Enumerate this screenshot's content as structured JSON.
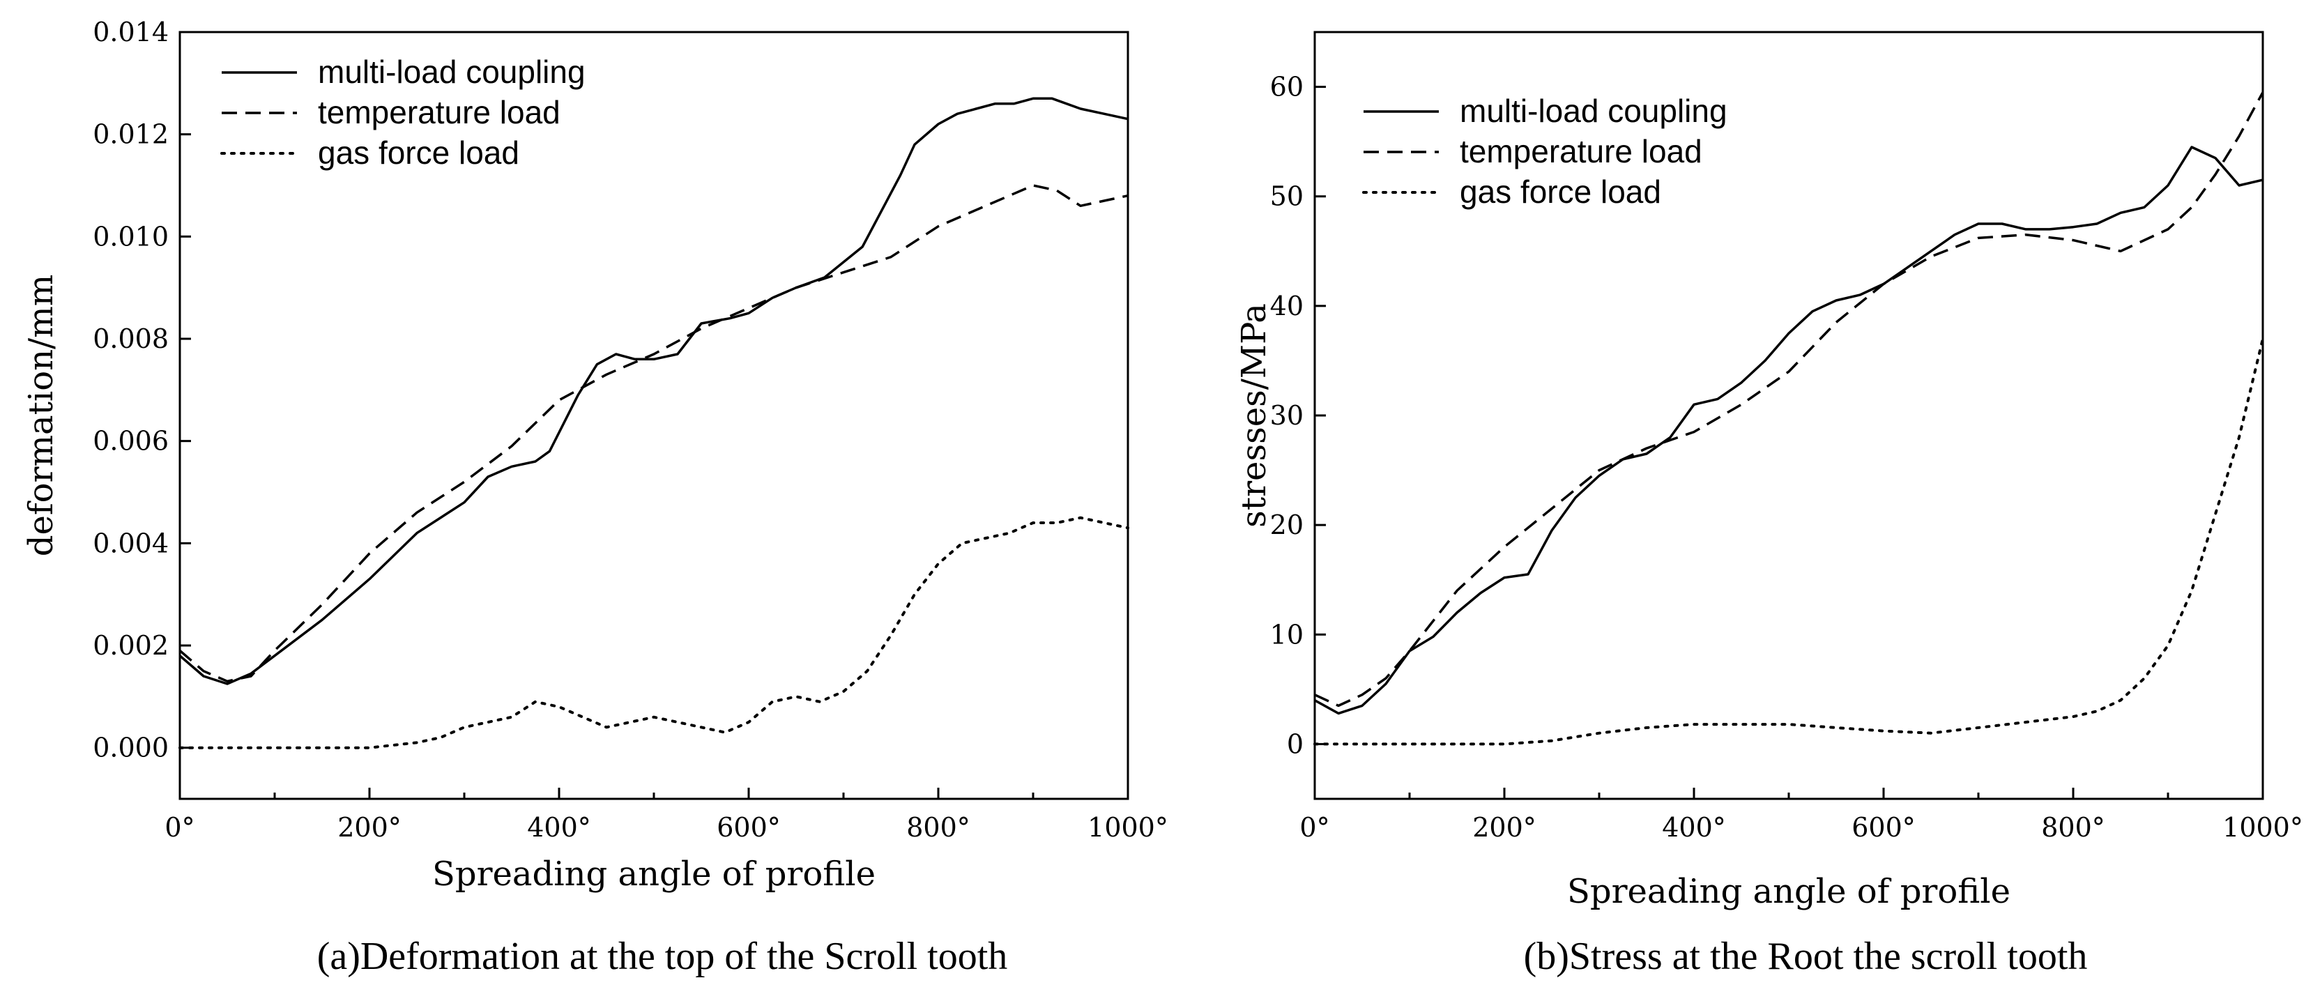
{
  "chart_data": [
    {
      "type": "line",
      "caption": "(a)Deformation at the top of the Scroll tooth",
      "xlabel": "Spreading angle of profile",
      "ylabel": "deformation/mm",
      "xlim": [
        0,
        1000
      ],
      "ylim": [
        -0.001,
        0.014
      ],
      "xticks": [
        0,
        200,
        400,
        600,
        800,
        1000
      ],
      "xtick_labels": [
        "0°",
        "200°",
        "400°",
        "600°",
        "800°",
        "1000°"
      ],
      "yticks": [
        0,
        0.002,
        0.004,
        0.006,
        0.008,
        0.01,
        0.012,
        0.014
      ],
      "ytick_labels": [
        "0.000",
        "0.002",
        "0.004",
        "0.006",
        "0.008",
        "0.010",
        "0.012",
        "0.014"
      ],
      "legend_position": "top-left",
      "series": [
        {
          "name": "multi-load coupling",
          "style": "solid",
          "x": [
            0,
            25,
            50,
            75,
            100,
            150,
            200,
            250,
            300,
            325,
            350,
            375,
            390,
            420,
            440,
            460,
            480,
            500,
            525,
            550,
            580,
            600,
            625,
            650,
            680,
            700,
            720,
            740,
            760,
            775,
            800,
            820,
            840,
            860,
            880,
            900,
            920,
            950,
            975,
            1000
          ],
          "y": [
            0.0018,
            0.0014,
            0.00125,
            0.00145,
            0.0018,
            0.0025,
            0.0033,
            0.0042,
            0.0048,
            0.0053,
            0.0055,
            0.0056,
            0.0058,
            0.0069,
            0.0075,
            0.0077,
            0.0076,
            0.0076,
            0.0077,
            0.0083,
            0.0084,
            0.0085,
            0.0088,
            0.009,
            0.0092,
            0.0095,
            0.0098,
            0.0105,
            0.0112,
            0.0118,
            0.0122,
            0.0124,
            0.0125,
            0.0126,
            0.0126,
            0.0127,
            0.0127,
            0.0125,
            0.0124,
            0.0123
          ]
        },
        {
          "name": "temperature load",
          "style": "dashed",
          "x": [
            0,
            25,
            50,
            75,
            100,
            150,
            200,
            250,
            300,
            350,
            400,
            450,
            500,
            550,
            600,
            650,
            700,
            750,
            800,
            850,
            900,
            925,
            950,
            975,
            1000
          ],
          "y": [
            0.0019,
            0.0015,
            0.0013,
            0.0014,
            0.0019,
            0.0028,
            0.0038,
            0.0046,
            0.0052,
            0.0059,
            0.0068,
            0.0073,
            0.0077,
            0.0082,
            0.0086,
            0.009,
            0.0093,
            0.0096,
            0.0102,
            0.0106,
            0.011,
            0.0109,
            0.0106,
            0.0107,
            0.0108
          ]
        },
        {
          "name": "gas force load",
          "style": "dotted",
          "x": [
            0,
            100,
            200,
            250,
            275,
            300,
            325,
            350,
            375,
            400,
            425,
            450,
            475,
            500,
            525,
            550,
            575,
            600,
            625,
            650,
            675,
            700,
            725,
            750,
            775,
            800,
            825,
            850,
            875,
            900,
            925,
            950,
            975,
            1000
          ],
          "y": [
            0.0,
            0.0,
            0.0,
            0.0001,
            0.0002,
            0.0004,
            0.0005,
            0.0006,
            0.0009,
            0.0008,
            0.0006,
            0.0004,
            0.0005,
            0.0006,
            0.0005,
            0.0004,
            0.0003,
            0.0005,
            0.0009,
            0.001,
            0.0009,
            0.0011,
            0.0015,
            0.0022,
            0.003,
            0.0036,
            0.004,
            0.0041,
            0.0042,
            0.0044,
            0.0044,
            0.0045,
            0.0044,
            0.0043
          ]
        }
      ]
    },
    {
      "type": "line",
      "caption": "(b)Stress at the Root the scroll tooth",
      "xlabel": "Spreading angle of profile",
      "ylabel": "stresses/MPa",
      "xlim": [
        0,
        1000
      ],
      "ylim": [
        -5,
        65
      ],
      "xticks": [
        0,
        200,
        400,
        600,
        800,
        1000
      ],
      "xtick_labels": [
        "0°",
        "200°",
        "400°",
        "600°",
        "800°",
        "1000°"
      ],
      "yticks": [
        0,
        10,
        20,
        30,
        40,
        50,
        60
      ],
      "ytick_labels": [
        "0",
        "10",
        "20",
        "30",
        "40",
        "50",
        "60"
      ],
      "legend_position": "top-left",
      "series": [
        {
          "name": "multi-load coupling",
          "style": "solid",
          "x": [
            0,
            25,
            50,
            75,
            100,
            125,
            150,
            175,
            200,
            225,
            250,
            275,
            300,
            325,
            350,
            375,
            400,
            425,
            450,
            475,
            500,
            525,
            550,
            575,
            600,
            625,
            650,
            675,
            700,
            725,
            750,
            775,
            800,
            825,
            850,
            875,
            900,
            925,
            950,
            975,
            1000
          ],
          "y": [
            4,
            2.8,
            3.5,
            5.5,
            8.5,
            9.8,
            12,
            13.8,
            15.2,
            15.5,
            19.5,
            22.5,
            24.5,
            26,
            26.5,
            28,
            31,
            31.5,
            33,
            35,
            37.5,
            39.5,
            40.5,
            41,
            42,
            43.5,
            45,
            46.5,
            47.5,
            47.5,
            47,
            47,
            47.2,
            47.5,
            48.5,
            49,
            51,
            54.5,
            53.5,
            51,
            51.5
          ]
        },
        {
          "name": "temperature load",
          "style": "dashed",
          "x": [
            0,
            25,
            50,
            75,
            100,
            150,
            200,
            250,
            300,
            350,
            400,
            450,
            500,
            550,
            600,
            650,
            700,
            750,
            800,
            850,
            900,
            925,
            950,
            975,
            1000
          ],
          "y": [
            4.5,
            3.5,
            4.5,
            6,
            8.5,
            14,
            18,
            21.5,
            25,
            27,
            28.5,
            31,
            34,
            38.5,
            42,
            44.5,
            46.2,
            46.5,
            46,
            45,
            47,
            49,
            52,
            55.5,
            59.5
          ]
        },
        {
          "name": "gas force load",
          "style": "dotted",
          "x": [
            0,
            100,
            200,
            250,
            300,
            350,
            400,
            450,
            500,
            550,
            600,
            650,
            700,
            750,
            800,
            825,
            850,
            875,
            900,
            925,
            950,
            975,
            1000
          ],
          "y": [
            0,
            0,
            0,
            0.3,
            1,
            1.5,
            1.8,
            1.8,
            1.8,
            1.5,
            1.2,
            1,
            1.5,
            2,
            2.5,
            3,
            4,
            6,
            9,
            14,
            21,
            28,
            37
          ]
        }
      ]
    }
  ]
}
